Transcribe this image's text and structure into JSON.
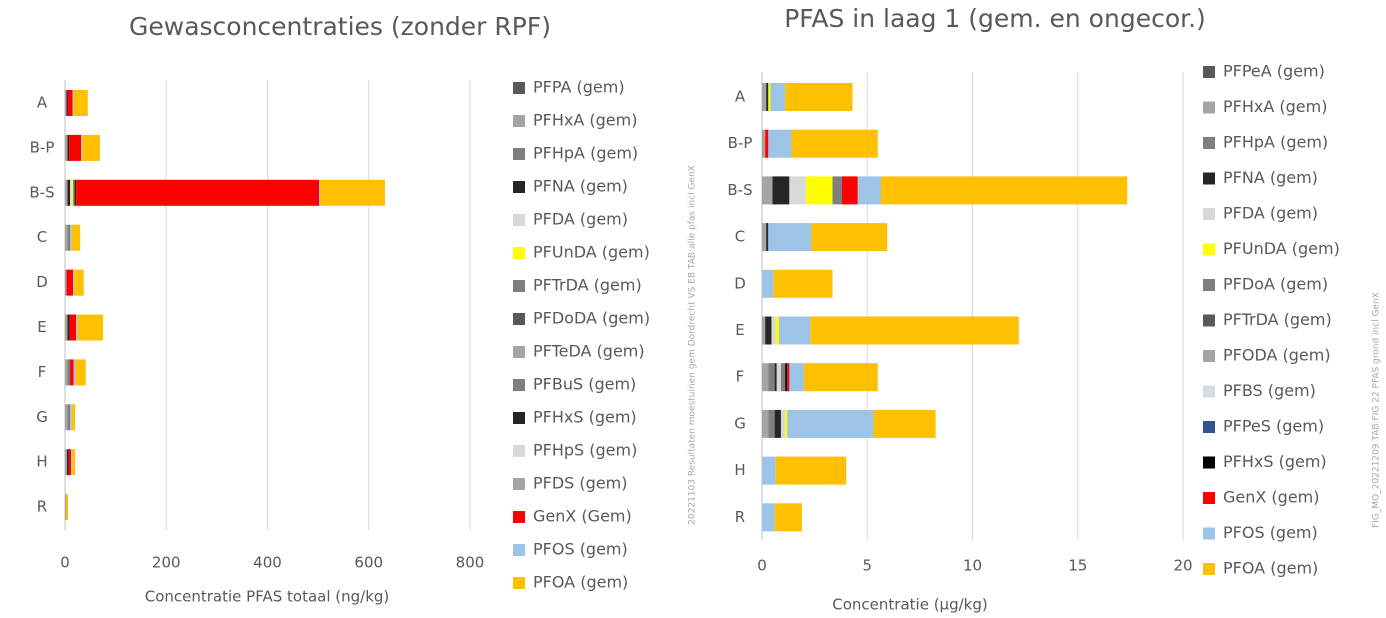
{
  "chart_data": [
    {
      "type": "stacked_barh",
      "title": "Gewasconcentraties (zonder RPF)",
      "x_label": "Concentratie PFAS totaal (ng/kg)",
      "categories": [
        "A",
        "B-P",
        "B-S",
        "C",
        "D",
        "E",
        "F",
        "G",
        "H",
        "R"
      ],
      "xlim": [
        0,
        800
      ],
      "xticks": [
        0,
        200,
        400,
        600,
        800
      ],
      "grid": true,
      "legend": "right",
      "series": [
        {
          "name": "PFPA (gem)",
          "color": "#595959",
          "values": [
            0,
            0,
            0,
            0,
            0,
            0,
            0,
            0,
            0,
            0
          ]
        },
        {
          "name": "PFHxA (gem)",
          "color": "#a5a5a5",
          "values": [
            3,
            5,
            5,
            5,
            3,
            5,
            5,
            5,
            4,
            2
          ]
        },
        {
          "name": "PFHpA (gem)",
          "color": "#7f7f7f",
          "values": [
            0,
            0,
            0,
            5,
            0,
            0,
            5,
            5,
            0,
            0
          ]
        },
        {
          "name": "PFNA (gem)",
          "color": "#262626",
          "values": [
            2,
            3,
            5,
            0,
            0,
            4,
            0,
            0,
            3,
            0
          ]
        },
        {
          "name": "PFDA (gem)",
          "color": "#d9d9d9",
          "values": [
            0,
            0,
            3,
            0,
            0,
            0,
            0,
            0,
            0,
            0
          ]
        },
        {
          "name": "PFUnDA (gem)",
          "color": "#ffff00",
          "values": [
            0,
            0,
            3,
            0,
            0,
            0,
            0,
            0,
            0,
            0
          ]
        },
        {
          "name": "PFTrDA (gem)",
          "color": "#7f7f7f",
          "values": [
            0,
            0,
            0,
            0,
            0,
            0,
            0,
            0,
            0,
            0
          ]
        },
        {
          "name": "PFDoDA (gem)",
          "color": "#595959",
          "values": [
            0,
            0,
            0,
            0,
            0,
            0,
            0,
            0,
            0,
            0
          ]
        },
        {
          "name": "PFTeDA (gem)",
          "color": "#a5a5a5",
          "values": [
            0,
            0,
            0,
            0,
            0,
            0,
            0,
            0,
            0,
            0
          ]
        },
        {
          "name": "PFBuS (gem)",
          "color": "#7f7f7f",
          "values": [
            0,
            0,
            3,
            0,
            0,
            0,
            0,
            0,
            0,
            0
          ]
        },
        {
          "name": "PFHxS (gem)",
          "color": "#262626",
          "values": [
            0,
            0,
            3,
            0,
            0,
            0,
            0,
            0,
            0,
            0
          ]
        },
        {
          "name": "PFHpS (gem)",
          "color": "#d9d9d9",
          "values": [
            0,
            0,
            0,
            0,
            0,
            0,
            0,
            0,
            0,
            0
          ]
        },
        {
          "name": "PFDS (gem)",
          "color": "#a5a5a5",
          "values": [
            0,
            0,
            0,
            0,
            0,
            0,
            0,
            0,
            0,
            0
          ]
        },
        {
          "name": "GenX (Gem)",
          "color": "#ff0000",
          "values": [
            10,
            24,
            480,
            0,
            13,
            13,
            7,
            0,
            5,
            0
          ]
        },
        {
          "name": "PFOS (gem)",
          "color": "#9dc3e6",
          "values": [
            2,
            2,
            2,
            3,
            2,
            3,
            4,
            3,
            2,
            0
          ]
        },
        {
          "name": "PFOA (gem)",
          "color": "#ffc000",
          "values": [
            28,
            35,
            128,
            17,
            19,
            50,
            20,
            7,
            6,
            4
          ]
        }
      ]
    },
    {
      "type": "stacked_barh",
      "title": "PFAS in laag 1 (gem. en ongecor.)",
      "x_label": "Concentratie (µg/kg)",
      "annotations": [
        "20221103 Resultaten moestuinen gem Dordrecht VS EB TAB:alle pfas incl GenX",
        "FIG_MO_20221209 TAB:FIG 22 PFAS grond incl GenX"
      ],
      "categories": [
        "A",
        "B-P",
        "B-S",
        "C",
        "D",
        "E",
        "F",
        "G",
        "H",
        "R"
      ],
      "xlim": [
        0,
        20
      ],
      "xticks": [
        0,
        5,
        10,
        15,
        20
      ],
      "grid": true,
      "legend": "right",
      "series": [
        {
          "name": "PFPeA (gem)",
          "color": "#595959",
          "values": [
            0,
            0,
            0,
            0,
            0,
            0,
            0,
            0,
            0,
            0
          ]
        },
        {
          "name": "PFHxA (gem)",
          "color": "#a5a5a5",
          "values": [
            0.2,
            0.15,
            0.5,
            0.2,
            0,
            0.15,
            0.3,
            0.3,
            0,
            0
          ]
        },
        {
          "name": "PFHpA (gem)",
          "color": "#7f7f7f",
          "values": [
            0,
            0,
            0,
            0,
            0,
            0,
            0.3,
            0.3,
            0,
            0
          ]
        },
        {
          "name": "PFNA (gem)",
          "color": "#262626",
          "values": [
            0.1,
            0,
            0.8,
            0.1,
            0,
            0.3,
            0.1,
            0.3,
            0,
            0
          ]
        },
        {
          "name": "PFDA (gem)",
          "color": "#d9d9d9",
          "values": [
            0,
            0,
            0.8,
            0,
            0,
            0.2,
            0.2,
            0.2,
            0,
            0
          ]
        },
        {
          "name": "PFUnDA (gem)",
          "color": "#ffff00",
          "values": [
            0.1,
            0,
            1.25,
            0,
            0,
            0.15,
            0,
            0.1,
            0,
            0
          ]
        },
        {
          "name": "PFDoA (gem)",
          "color": "#7f7f7f",
          "values": [
            0,
            0,
            0.45,
            0,
            0,
            0,
            0.2,
            0,
            0,
            0
          ]
        },
        {
          "name": "PFTrDA (gem)",
          "color": "#595959",
          "values": [
            0,
            0,
            0,
            0,
            0,
            0,
            0,
            0,
            0,
            0
          ]
        },
        {
          "name": "PFODA  (gem)",
          "color": "#a5a5a5",
          "values": [
            0,
            0,
            0,
            0,
            0,
            0,
            0,
            0,
            0,
            0
          ]
        },
        {
          "name": "PFBS (gem)",
          "color": "#d6dce5",
          "values": [
            0,
            0,
            0,
            0,
            0,
            0,
            0,
            0,
            0,
            0
          ]
        },
        {
          "name": "PFPeS (gem)",
          "color": "#2f5597",
          "values": [
            0,
            0,
            0,
            0,
            0,
            0,
            0,
            0,
            0,
            0
          ]
        },
        {
          "name": "PFHxS (gem)",
          "color": "#000000",
          "values": [
            0,
            0,
            0,
            0,
            0,
            0,
            0.1,
            0,
            0,
            0
          ]
        },
        {
          "name": "GenX (gem)",
          "color": "#ff0000",
          "values": [
            0,
            0.15,
            0.75,
            0,
            0,
            0,
            0.1,
            0,
            0,
            0
          ]
        },
        {
          "name": "PFOS (gem)",
          "color": "#9dc3e6",
          "values": [
            0.7,
            1.1,
            1.1,
            2.05,
            0.55,
            1.5,
            0.7,
            4.1,
            0.65,
            0.6
          ]
        },
        {
          "name": "PFOA (gem)",
          "color": "#ffc000",
          "values": [
            3.2,
            4.1,
            11.7,
            3.6,
            2.8,
            9.9,
            3.5,
            2.95,
            3.35,
            1.3
          ]
        }
      ]
    }
  ]
}
